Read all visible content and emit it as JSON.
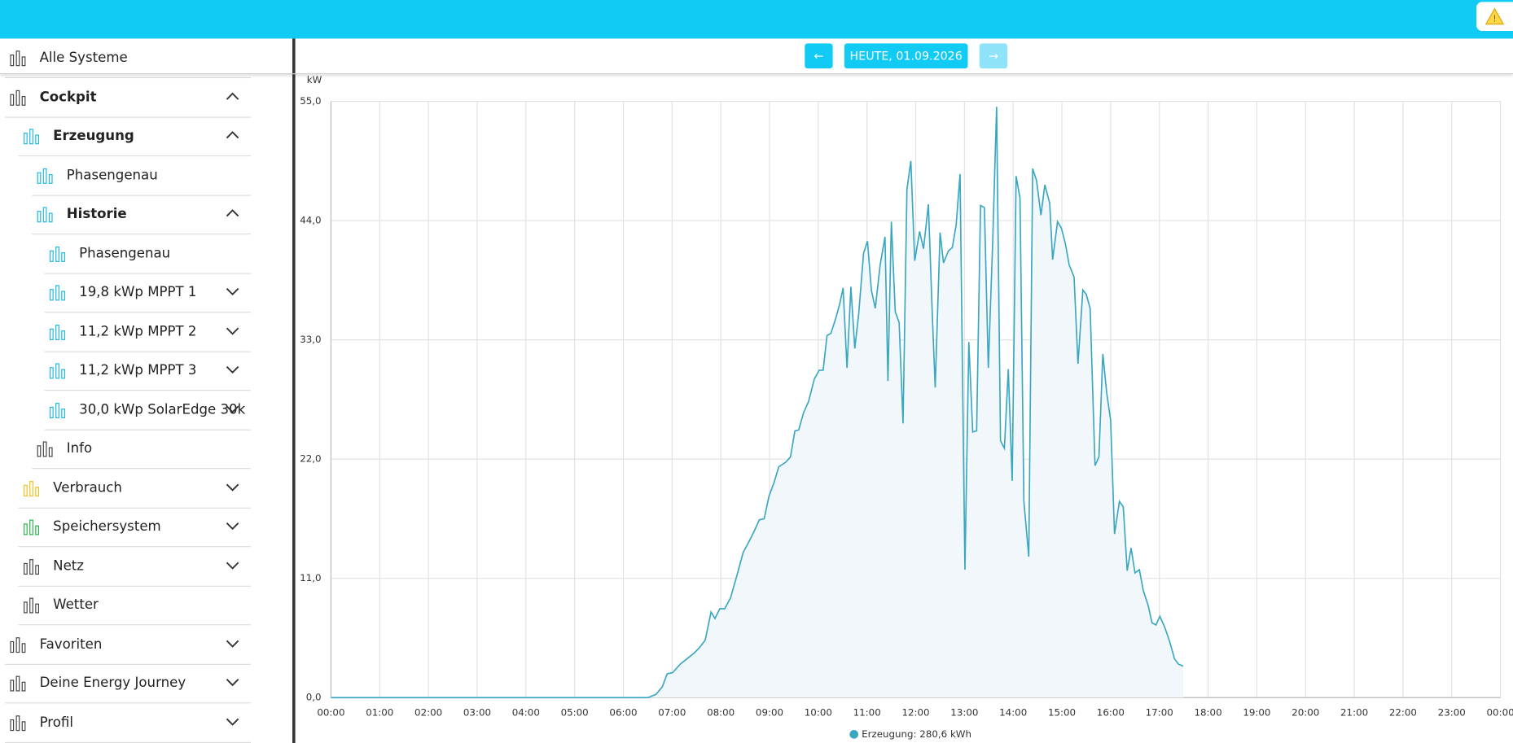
{
  "header": {
    "date": "HEUTE, 01.09.2026"
  },
  "nav": {
    "items": [
      "Alle Systeme",
      "Cockpit",
      "Erzeugung",
      "Phasengenau",
      "Historie",
      "Phasengenau",
      "19,8 kWp MPPT 1",
      "11,2 kWp MPPT 2",
      "11,2 kWp MPPT 3",
      "30,0 kWp SolarEdge 30k",
      "Info",
      "Verbrauch",
      "Speichersystem",
      "Netz",
      "Wetter",
      "Favoriten",
      "Deine Energy Journey",
      "Profil"
    ]
  },
  "chart_data": {
    "type": "line",
    "y_unit": "kW",
    "x": [
      0,
      6.5,
      6.67,
      6.8,
      6.9,
      7.01,
      7.17,
      7.31,
      7.45,
      7.56,
      7.68,
      7.8,
      7.88,
      7.98,
      8.08,
      8.2,
      8.32,
      8.46,
      8.59,
      8.69,
      8.79,
      8.89,
      8.99,
      9.09,
      9.19,
      9.33,
      9.43,
      9.52,
      9.6,
      9.7,
      9.8,
      9.92,
      10.02,
      10.1,
      10.18,
      10.26,
      10.36,
      10.44,
      10.51,
      10.59,
      10.67,
      10.75,
      10.83,
      10.93,
      11.01,
      11.09,
      11.17,
      11.27,
      11.37,
      11.43,
      11.5,
      11.58,
      11.66,
      11.74,
      11.82,
      11.9,
      11.98,
      12.08,
      12.16,
      12.26,
      12.34,
      12.4,
      12.5,
      12.57,
      12.67,
      12.75,
      12.83,
      12.91,
      13.01,
      13.09,
      13.17,
      13.25,
      13.33,
      13.41,
      13.49,
      13.58,
      13.66,
      13.74,
      13.82,
      13.9,
      13.98,
      14.06,
      14.14,
      14.22,
      14.32,
      14.4,
      14.48,
      14.57,
      14.65,
      14.75,
      14.81,
      14.91,
      14.99,
      15.07,
      15.15,
      15.25,
      15.33,
      15.43,
      15.5,
      15.58,
      15.68,
      15.76,
      15.84,
      15.92,
      16.0,
      16.08,
      16.18,
      16.26,
      16.34,
      16.42,
      16.5,
      16.59,
      16.67,
      16.77,
      16.85,
      16.93,
      17.01,
      17.11,
      17.21,
      17.31,
      17.39,
      17.49
    ],
    "series": [
      {
        "name": "Erzeugung: 280,6 kWh",
        "color": "#3aa7c2",
        "fill": "#f1f7fb",
        "values": [
          0,
          0,
          0.3,
          1.0,
          2.2,
          2.3,
          3.1,
          3.6,
          4.1,
          4.6,
          5.3,
          7.9,
          7.3,
          8.2,
          8.2,
          9.2,
          11.1,
          13.4,
          14.5,
          15.4,
          16.4,
          16.5,
          18.6,
          19.8,
          21.3,
          21.7,
          22.2,
          24.6,
          24.7,
          26.3,
          27.3,
          29.4,
          30.2,
          30.2,
          33.4,
          33.6,
          35.0,
          36.3,
          37.8,
          30.4,
          37.9,
          32.2,
          35.4,
          41.0,
          42.1,
          37.6,
          35.9,
          39.9,
          42.5,
          29.2,
          43.9,
          35.6,
          34.6,
          25.3,
          46.9,
          49.5,
          40.3,
          43.0,
          41.4,
          45.5,
          35.4,
          28.6,
          42.9,
          40.1,
          41.2,
          41.5,
          43.6,
          48.3,
          11.8,
          32.8,
          24.5,
          24.6,
          45.4,
          45.2,
          30.4,
          42.1,
          54.5,
          23.7,
          23.0,
          30.3,
          20.0,
          48.1,
          46.1,
          18.1,
          13.0,
          48.8,
          47.7,
          44.5,
          47.3,
          45.6,
          40.4,
          43.9,
          43.3,
          41.9,
          39.9,
          38.8,
          30.8,
          37.6,
          37.2,
          35.9,
          21.4,
          22.2,
          31.7,
          28.1,
          25.6,
          15.1,
          18.1,
          17.6,
          11.7,
          13.8,
          11.5,
          11.8,
          9.9,
          8.5,
          6.9,
          6.7,
          7.5,
          6.5,
          5.2,
          3.6,
          3.1,
          2.9
        ]
      }
    ],
    "xlim": [
      0,
      24
    ],
    "ylim": [
      0,
      55
    ],
    "xticks": [
      {
        "value": 0,
        "label": "00:00"
      },
      {
        "value": 1,
        "label": "01:00"
      },
      {
        "value": 2,
        "label": "02:00"
      },
      {
        "value": 3,
        "label": "03:00"
      },
      {
        "value": 4,
        "label": "04:00"
      },
      {
        "value": 5,
        "label": "05:00"
      },
      {
        "value": 6,
        "label": "06:00"
      },
      {
        "value": 7,
        "label": "07:00"
      },
      {
        "value": 8,
        "label": "08:00"
      },
      {
        "value": 9,
        "label": "09:00"
      },
      {
        "value": 10,
        "label": "10:00"
      },
      {
        "value": 11,
        "label": "11:00"
      },
      {
        "value": 12,
        "label": "12:00"
      },
      {
        "value": 13,
        "label": "13:00"
      },
      {
        "value": 14,
        "label": "14:00"
      },
      {
        "value": 15,
        "label": "15:00"
      },
      {
        "value": 16,
        "label": "16:00"
      },
      {
        "value": 17,
        "label": "17:00"
      },
      {
        "value": 18,
        "label": "18:00"
      },
      {
        "value": 19,
        "label": "19:00"
      },
      {
        "value": 20,
        "label": "20:00"
      },
      {
        "value": 21,
        "label": "21:00"
      },
      {
        "value": 22,
        "label": "22:00"
      },
      {
        "value": 23,
        "label": "23:00"
      },
      {
        "value": 24,
        "label": "00:00"
      }
    ],
    "yticks": [
      {
        "value": 0,
        "label": "0,0"
      },
      {
        "value": 11,
        "label": "11,0"
      },
      {
        "value": 22,
        "label": "22,0"
      },
      {
        "value": 33,
        "label": "33,0"
      },
      {
        "value": 44,
        "label": "44,0"
      },
      {
        "value": 55,
        "label": "55,0"
      }
    ],
    "grid": true
  }
}
